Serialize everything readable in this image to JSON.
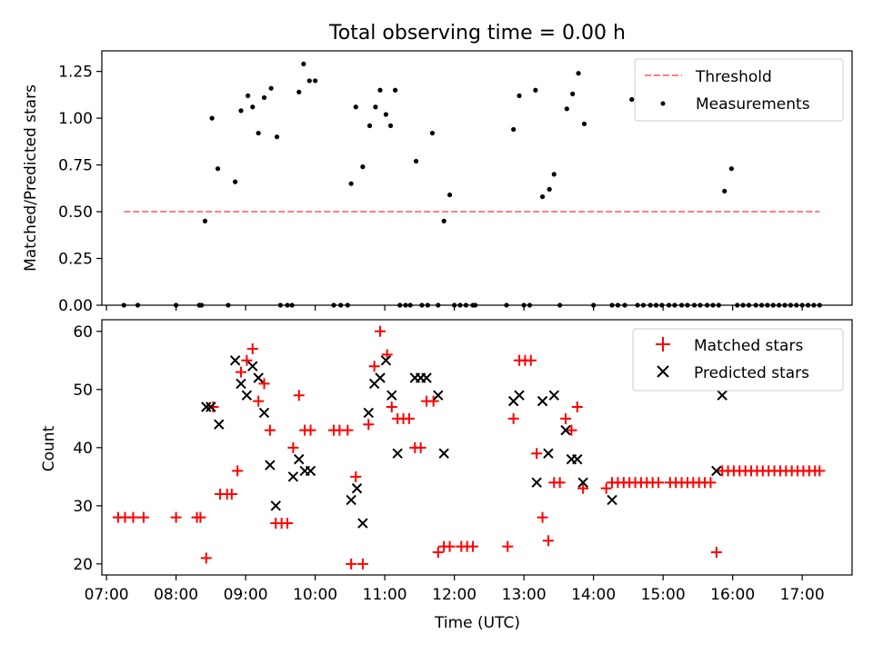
{
  "figure": {
    "title": "Total observing time = 0.00 h",
    "xlabel": "Time (UTC)"
  },
  "chart_data": [
    {
      "type": "scatter",
      "ylabel": "Matched/Predicted stars",
      "xlim": [
        "06:56",
        "17:43"
      ],
      "ylim": [
        0,
        1.36
      ],
      "y_ticks": [
        0.0,
        0.25,
        0.5,
        0.75,
        1.0,
        1.25
      ],
      "y_tick_labels": [
        "0.00",
        "0.25",
        "0.50",
        "0.75",
        "1.00",
        "1.25"
      ],
      "grid": false,
      "legend": {
        "position": "top-right",
        "entries": [
          "Threshold",
          "Measurements"
        ]
      },
      "threshold": {
        "name": "Threshold",
        "value": 0.5,
        "x_range": [
          "07:15",
          "17:15"
        ],
        "color": "#ff7f7f",
        "style": "dashed"
      },
      "series": [
        {
          "name": "Measurements",
          "marker": "dot",
          "color": "#000000",
          "points": [
            [
              "07:15",
              0
            ],
            [
              "07:27",
              0
            ],
            [
              "08:00",
              0
            ],
            [
              "08:20",
              0
            ],
            [
              "08:22",
              0
            ],
            [
              "08:25",
              0.45
            ],
            [
              "08:31",
              1.0
            ],
            [
              "08:36",
              0.73
            ],
            [
              "08:45",
              0
            ],
            [
              "08:51",
              0.66
            ],
            [
              "08:56",
              1.04
            ],
            [
              "09:02",
              1.12
            ],
            [
              "09:06",
              1.06
            ],
            [
              "09:11",
              0.92
            ],
            [
              "09:16",
              1.11
            ],
            [
              "09:22",
              1.16
            ],
            [
              "09:27",
              0.9
            ],
            [
              "09:30",
              0
            ],
            [
              "09:36",
              0
            ],
            [
              "09:40",
              0
            ],
            [
              "09:46",
              1.14
            ],
            [
              "09:50",
              1.29
            ],
            [
              "09:55",
              1.2
            ],
            [
              "10:00",
              1.2
            ],
            [
              "10:16",
              0
            ],
            [
              "10:22",
              0
            ],
            [
              "10:28",
              0
            ],
            [
              "10:31",
              0.65
            ],
            [
              "10:35",
              1.06
            ],
            [
              "10:41",
              0.74
            ],
            [
              "10:47",
              0.96
            ],
            [
              "10:52",
              1.06
            ],
            [
              "10:56",
              1.15
            ],
            [
              "11:01",
              1.02
            ],
            [
              "11:05",
              0.96
            ],
            [
              "11:09",
              1.15
            ],
            [
              "11:13",
              0
            ],
            [
              "11:18",
              0
            ],
            [
              "11:22",
              0
            ],
            [
              "11:27",
              0.77
            ],
            [
              "11:32",
              0
            ],
            [
              "11:37",
              0
            ],
            [
              "11:41",
              0.92
            ],
            [
              "11:46",
              0
            ],
            [
              "11:51",
              0.45
            ],
            [
              "11:56",
              0.59
            ],
            [
              "12:00",
              0
            ],
            [
              "12:05",
              0
            ],
            [
              "12:10",
              0
            ],
            [
              "12:16",
              0
            ],
            [
              "12:18",
              0
            ],
            [
              "12:45",
              0
            ],
            [
              "12:51",
              0.94
            ],
            [
              "12:56",
              1.12
            ],
            [
              "13:00",
              0
            ],
            [
              "13:05",
              0
            ],
            [
              "13:10",
              1.15
            ],
            [
              "13:16",
              0.58
            ],
            [
              "13:22",
              0.62
            ],
            [
              "13:26",
              0.7
            ],
            [
              "13:31",
              0
            ],
            [
              "13:37",
              1.05
            ],
            [
              "13:42",
              1.13
            ],
            [
              "13:47",
              1.24
            ],
            [
              "13:52",
              0.97
            ],
            [
              "14:00",
              0
            ],
            [
              "14:16",
              0
            ],
            [
              "14:21",
              0
            ],
            [
              "14:27",
              0
            ],
            [
              "14:33",
              1.1
            ],
            [
              "14:38",
              0
            ],
            [
              "14:43",
              0
            ],
            [
              "14:49",
              0
            ],
            [
              "14:54",
              0
            ],
            [
              "14:59",
              0
            ],
            [
              "15:05",
              0
            ],
            [
              "15:10",
              0
            ],
            [
              "15:16",
              0
            ],
            [
              "15:21",
              0
            ],
            [
              "15:27",
              0
            ],
            [
              "15:32",
              0
            ],
            [
              "15:38",
              0
            ],
            [
              "15:43",
              0
            ],
            [
              "15:48",
              0
            ],
            [
              "15:53",
              0.61
            ],
            [
              "15:59",
              0.73
            ],
            [
              "16:04",
              0
            ],
            [
              "16:09",
              0
            ],
            [
              "16:14",
              0
            ],
            [
              "16:20",
              0
            ],
            [
              "16:25",
              0
            ],
            [
              "16:30",
              0
            ],
            [
              "16:35",
              0
            ],
            [
              "16:40",
              0
            ],
            [
              "16:45",
              0
            ],
            [
              "16:50",
              0
            ],
            [
              "16:55",
              0
            ],
            [
              "17:00",
              0
            ],
            [
              "17:05",
              0
            ],
            [
              "17:10",
              0
            ],
            [
              "17:15",
              0
            ]
          ]
        }
      ]
    },
    {
      "type": "scatter",
      "ylabel": "Count",
      "xlim": [
        "06:56",
        "17:43"
      ],
      "ylim": [
        18.1,
        62.0
      ],
      "y_ticks": [
        20,
        30,
        40,
        50,
        60
      ],
      "x_tick_labels": [
        "07:00",
        "08:00",
        "09:00",
        "10:00",
        "11:00",
        "12:00",
        "13:00",
        "14:00",
        "15:00",
        "16:00",
        "17:00"
      ],
      "grid": false,
      "legend": {
        "position": "top-right",
        "entries": [
          "Matched stars",
          "Predicted stars"
        ]
      },
      "series": [
        {
          "name": "Matched stars",
          "marker": "plus",
          "color": "#ff0000",
          "points": [
            [
              "07:10",
              28
            ],
            [
              "07:16",
              28
            ],
            [
              "07:23",
              28
            ],
            [
              "07:32",
              28
            ],
            [
              "08:00",
              28
            ],
            [
              "08:18",
              28
            ],
            [
              "08:21",
              28
            ],
            [
              "08:26",
              21
            ],
            [
              "08:32",
              47
            ],
            [
              "08:38",
              32
            ],
            [
              "08:44",
              32
            ],
            [
              "08:48",
              32
            ],
            [
              "08:53",
              36
            ],
            [
              "08:56",
              53
            ],
            [
              "09:01",
              55
            ],
            [
              "09:06",
              57
            ],
            [
              "09:11",
              48
            ],
            [
              "09:16",
              51
            ],
            [
              "09:21",
              43
            ],
            [
              "09:26",
              27
            ],
            [
              "09:31",
              27
            ],
            [
              "09:36",
              27
            ],
            [
              "09:41",
              40
            ],
            [
              "09:46",
              49
            ],
            [
              "09:51",
              43
            ],
            [
              "09:56",
              43
            ],
            [
              "10:16",
              43
            ],
            [
              "10:21",
              43
            ],
            [
              "10:28",
              43
            ],
            [
              "10:31",
              20
            ],
            [
              "10:35",
              35
            ],
            [
              "10:41",
              20
            ],
            [
              "10:46",
              44
            ],
            [
              "10:51",
              54
            ],
            [
              "10:56",
              60
            ],
            [
              "11:02",
              56
            ],
            [
              "11:06",
              47
            ],
            [
              "11:11",
              45
            ],
            [
              "11:16",
              45
            ],
            [
              "11:21",
              45
            ],
            [
              "11:26",
              40
            ],
            [
              "11:31",
              40
            ],
            [
              "11:36",
              48
            ],
            [
              "11:42",
              48
            ],
            [
              "11:46",
              22
            ],
            [
              "11:51",
              23
            ],
            [
              "11:56",
              23
            ],
            [
              "12:06",
              23
            ],
            [
              "12:11",
              23
            ],
            [
              "12:16",
              23
            ],
            [
              "12:46",
              23
            ],
            [
              "12:51",
              45
            ],
            [
              "12:56",
              55
            ],
            [
              "13:01",
              55
            ],
            [
              "13:06",
              55
            ],
            [
              "13:11",
              39
            ],
            [
              "13:16",
              28
            ],
            [
              "13:21",
              24
            ],
            [
              "13:26",
              34
            ],
            [
              "13:31",
              34
            ],
            [
              "13:36",
              45
            ],
            [
              "13:41",
              43
            ],
            [
              "13:46",
              47
            ],
            [
              "13:51",
              33
            ],
            [
              "14:11",
              33
            ],
            [
              "14:16",
              34
            ],
            [
              "14:21",
              34
            ],
            [
              "14:26",
              34
            ],
            [
              "14:31",
              34
            ],
            [
              "14:36",
              34
            ],
            [
              "14:41",
              34
            ],
            [
              "14:46",
              34
            ],
            [
              "14:51",
              34
            ],
            [
              "14:56",
              34
            ],
            [
              "15:06",
              34
            ],
            [
              "15:11",
              34
            ],
            [
              "15:16",
              34
            ],
            [
              "15:21",
              34
            ],
            [
              "15:26",
              34
            ],
            [
              "15:31",
              34
            ],
            [
              "15:36",
              34
            ],
            [
              "15:41",
              34
            ],
            [
              "15:46",
              22
            ],
            [
              "15:51",
              36
            ],
            [
              "15:56",
              36
            ],
            [
              "16:01",
              36
            ],
            [
              "16:06",
              36
            ],
            [
              "16:11",
              36
            ],
            [
              "16:16",
              36
            ],
            [
              "16:21",
              36
            ],
            [
              "16:26",
              36
            ],
            [
              "16:31",
              36
            ],
            [
              "16:36",
              36
            ],
            [
              "16:41",
              36
            ],
            [
              "16:46",
              36
            ],
            [
              "16:51",
              36
            ],
            [
              "16:56",
              36
            ],
            [
              "17:01",
              36
            ],
            [
              "17:06",
              36
            ],
            [
              "17:11",
              36
            ],
            [
              "17:15",
              36
            ]
          ]
        },
        {
          "name": "Predicted stars",
          "marker": "x",
          "color": "#000000",
          "points": [
            [
              "08:26",
              47
            ],
            [
              "08:30",
              47
            ],
            [
              "08:37",
              44
            ],
            [
              "08:51",
              55
            ],
            [
              "08:56",
              51
            ],
            [
              "09:01",
              49
            ],
            [
              "09:06",
              54
            ],
            [
              "09:11",
              52
            ],
            [
              "09:16",
              46
            ],
            [
              "09:21",
              37
            ],
            [
              "09:26",
              30
            ],
            [
              "09:41",
              35
            ],
            [
              "09:46",
              38
            ],
            [
              "09:51",
              36
            ],
            [
              "09:56",
              36
            ],
            [
              "10:31",
              31
            ],
            [
              "10:36",
              33
            ],
            [
              "10:41",
              27
            ],
            [
              "10:46",
              46
            ],
            [
              "10:51",
              51
            ],
            [
              "10:56",
              52
            ],
            [
              "11:01",
              55
            ],
            [
              "11:06",
              49
            ],
            [
              "11:11",
              39
            ],
            [
              "11:26",
              52
            ],
            [
              "11:31",
              52
            ],
            [
              "11:36",
              52
            ],
            [
              "11:46",
              49
            ],
            [
              "11:51",
              39
            ],
            [
              "12:51",
              48
            ],
            [
              "12:56",
              49
            ],
            [
              "13:11",
              34
            ],
            [
              "13:16",
              48
            ],
            [
              "13:21",
              39
            ],
            [
              "13:26",
              49
            ],
            [
              "13:36",
              43
            ],
            [
              "13:41",
              38
            ],
            [
              "13:46",
              38
            ],
            [
              "13:51",
              34
            ],
            [
              "14:16",
              31
            ],
            [
              "15:46",
              36
            ],
            [
              "15:51",
              49
            ]
          ]
        }
      ]
    }
  ]
}
